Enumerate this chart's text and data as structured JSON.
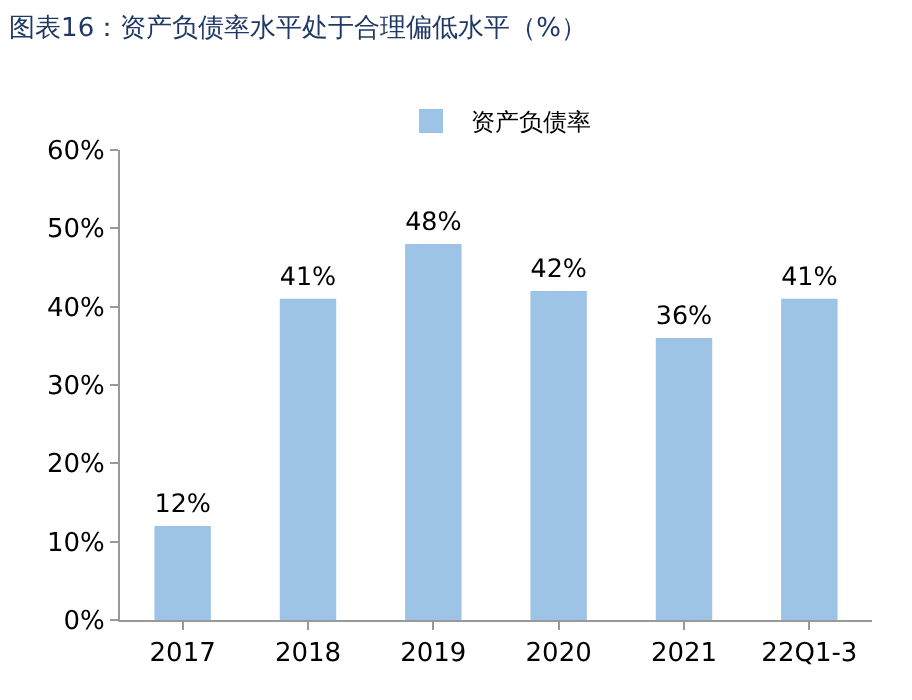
{
  "chart_data": {
    "type": "bar",
    "title": "图表16：资产负债率水平处于合理偏低水平（%）",
    "categories": [
      "2017",
      "2018",
      "2019",
      "2020",
      "2021",
      "22Q1-3"
    ],
    "series": [
      {
        "name": "资产负债率",
        "color": "#9dc3e6",
        "values": [
          12,
          41,
          48,
          42,
          36,
          41
        ]
      }
    ],
    "value_labels": [
      "12%",
      "41%",
      "48%",
      "42%",
      "36%",
      "41%"
    ],
    "ylim": [
      0,
      60
    ],
    "yticks": [
      {
        "value": 0,
        "label": "0%"
      },
      {
        "value": 10,
        "label": "10%"
      },
      {
        "value": 20,
        "label": "20%"
      },
      {
        "value": 30,
        "label": "30%"
      },
      {
        "value": 40,
        "label": "40%"
      },
      {
        "value": 50,
        "label": "50%"
      },
      {
        "value": 60,
        "label": "60%"
      }
    ],
    "legend": "top",
    "grid": false
  }
}
